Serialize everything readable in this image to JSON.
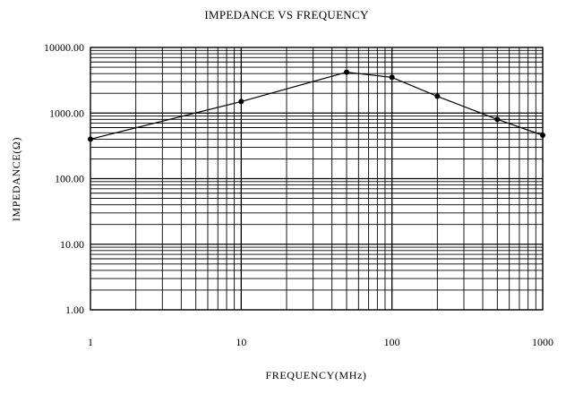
{
  "chart_data": {
    "type": "line",
    "title": "IMPEDANCE VS FREQUENCY",
    "xlabel": "FREQUENCY(MHz)",
    "ylabel": "IMPEDANCE(Ω)",
    "xscale": "log",
    "yscale": "log",
    "xlim": [
      1,
      1000
    ],
    "ylim": [
      1,
      10000
    ],
    "grid": true,
    "x_ticks": [
      "1",
      "10",
      "100",
      "1000"
    ],
    "y_ticks": [
      "1.00",
      "10.00",
      "100.00",
      "1000.00",
      "10000.00"
    ],
    "line_color": "#000000",
    "series": [
      {
        "x": [
          1,
          10,
          50,
          100,
          200,
          500,
          1000
        ],
        "y": [
          400,
          1500,
          4200,
          3500,
          1800,
          800,
          460
        ]
      }
    ]
  }
}
